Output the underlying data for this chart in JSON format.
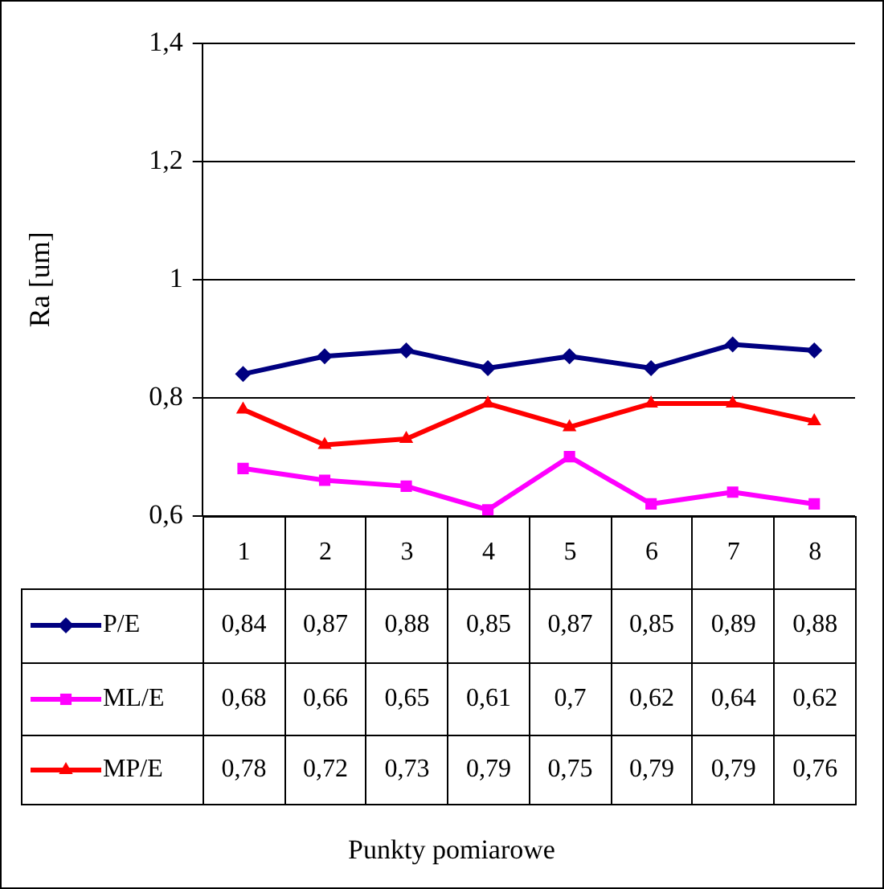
{
  "chart_data": {
    "type": "line",
    "ylabel": "Ra [um]",
    "annotations": [
      "Punkty pomiarowe"
    ],
    "categories": [
      "1",
      "2",
      "3",
      "4",
      "5",
      "6",
      "7",
      "8"
    ],
    "series": [
      {
        "name": "P/E",
        "color": "#000080",
        "marker": "diamond",
        "values": [
          0.84,
          0.87,
          0.88,
          0.85,
          0.87,
          0.85,
          0.89,
          0.88
        ],
        "value_labels": [
          "0,84",
          "0,87",
          "0,88",
          "0,85",
          "0,87",
          "0,85",
          "0,89",
          "0,88"
        ]
      },
      {
        "name": "ML/E",
        "color": "#ff00ff",
        "marker": "square",
        "values": [
          0.68,
          0.66,
          0.65,
          0.61,
          0.7,
          0.62,
          0.64,
          0.62
        ],
        "value_labels": [
          "0,68",
          "0,66",
          "0,65",
          "0,61",
          "0,7",
          "0,62",
          "0,64",
          "0,62"
        ]
      },
      {
        "name": "MP/E",
        "color": "#ff0000",
        "marker": "triangle",
        "values": [
          0.78,
          0.72,
          0.73,
          0.79,
          0.75,
          0.79,
          0.79,
          0.76
        ],
        "value_labels": [
          "0,78",
          "0,72",
          "0,73",
          "0,79",
          "0,75",
          "0,79",
          "0,79",
          "0,76"
        ]
      }
    ],
    "ylim": [
      0.6,
      1.4
    ],
    "yticks": [
      {
        "value": 0.6,
        "label": "0,6"
      },
      {
        "value": 0.8,
        "label": "0,8"
      },
      1,
      {
        "value": 1.2,
        "label": "1,2"
      },
      {
        "value": 1.4,
        "label": "1,4"
      }
    ],
    "grid": "y",
    "legend": "bottom left",
    "line_style": "solid"
  }
}
